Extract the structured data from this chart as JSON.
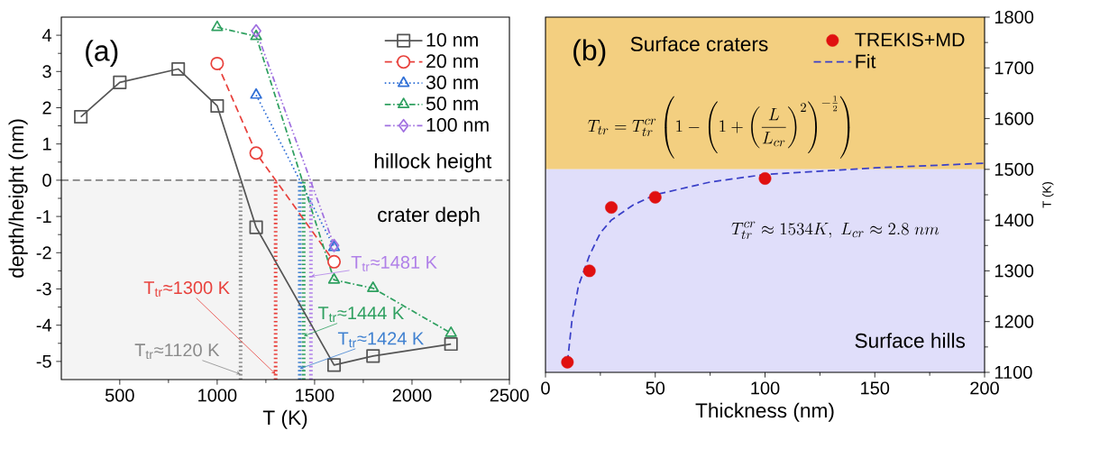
{
  "chart_data": [
    {
      "type": "line",
      "xlabel": "T (K)",
      "ylabel": "depth/height (nm)",
      "xlim": [
        200,
        2500
      ],
      "xticks": [
        500,
        1000,
        1500,
        2000,
        2500
      ],
      "ylim": [
        -5.5,
        4.5
      ],
      "yticks": [
        -5,
        -4,
        -3,
        -2,
        -1,
        0,
        1,
        2,
        3,
        4
      ],
      "legend": "top right",
      "series": [
        {
          "name": "10 nm",
          "color": "#555555",
          "marker": "square",
          "line_style": "solid",
          "x": [
            300,
            500,
            800,
            1000,
            1200,
            1600,
            1800,
            2200
          ],
          "values": [
            1.75,
            2.7,
            3.07,
            2.05,
            -1.3,
            -5.1,
            -4.85,
            -4.52
          ]
        },
        {
          "name": "20 nm",
          "color": "#e8413c",
          "marker": "circle",
          "line_style": "dashed",
          "x": [
            1000,
            1200,
            1600
          ],
          "values": [
            3.22,
            0.75,
            -2.25
          ]
        },
        {
          "name": "30 nm",
          "color": "#2f6fd6",
          "marker": "triangle",
          "line_style": "dotted",
          "x": [
            1200,
            1600
          ],
          "values": [
            2.35,
            -1.85
          ]
        },
        {
          "name": "50 nm",
          "color": "#2fa060",
          "marker": "triangle-down",
          "line_style": "dashdot",
          "x": [
            1000,
            1200,
            1600,
            1800,
            2200
          ],
          "values": [
            4.22,
            3.97,
            -2.75,
            -2.98,
            -4.22
          ]
        },
        {
          "name": "100 nm",
          "color": "#a070e0",
          "marker": "diamond",
          "line_style": "dashdotdot",
          "x": [
            1200,
            1600
          ],
          "values": [
            4.12,
            -1.8
          ]
        }
      ],
      "ref_lines": [
        {
          "axis": "y",
          "value": 0,
          "label": "hillock height",
          "color": "#555555",
          "line_style": "dashed"
        },
        {
          "axis": "x",
          "value": 1120,
          "color": "#8a8a8a",
          "line_style": "dotted"
        },
        {
          "axis": "x",
          "value": 1300,
          "color": "#e8413c",
          "line_style": "dotted"
        },
        {
          "axis": "x",
          "value": 1424,
          "color": "#3f80d0",
          "line_style": "dotted"
        },
        {
          "axis": "x",
          "value": 1444,
          "color": "#2fa060",
          "line_style": "dotted"
        },
        {
          "axis": "x",
          "value": 1481,
          "color": "#b080e8",
          "line_style": "dotted"
        }
      ],
      "bands": [
        {
          "axis": "y",
          "from": -5.5,
          "to": 0,
          "label": "crater deph",
          "color": "#f4f4f4"
        }
      ],
      "annotations": [
        "(a)",
        {
          "text": "T$_{tr}$≈1120 K",
          "x": 1120,
          "y": -5.35
        },
        {
          "text": "T$_{tr}$≈1300 K",
          "x": 1300,
          "y": -5.35
        },
        {
          "text": "T$_{tr}$≈1424 K",
          "x": 1424,
          "y": -5.2
        },
        {
          "text": "T$_{tr}$≈1444 K",
          "x": 1444,
          "y": -4.3
        },
        {
          "text": "T$_{tr}$≈1481 K",
          "x": 1481,
          "y": -2.65
        }
      ]
    },
    {
      "type": "scatter",
      "xlabel": "Thickness (nm)",
      "ylabel": "T (K)",
      "xlim": [
        0,
        200
      ],
      "xticks": [
        0,
        50,
        100,
        150,
        200
      ],
      "ylim": [
        1100,
        1800
      ],
      "yticks": [
        1100,
        1200,
        1300,
        1400,
        1500,
        1600,
        1700,
        1800
      ],
      "legend": "top right",
      "series": [
        {
          "name": "TREKIS+MD",
          "color": "#e01010",
          "marker": "circle",
          "x": [
            10,
            20,
            30,
            50,
            100
          ],
          "values": [
            1120,
            1300,
            1425,
            1445,
            1482
          ]
        },
        {
          "name": "Fit",
          "type": "line",
          "color": "#3a40c8",
          "marker": "none",
          "line_style": "dashed",
          "x": [
            10,
            12,
            15,
            20,
            25,
            30,
            40,
            50,
            75,
            100,
            150,
            200
          ],
          "values": [
            1120,
            1200,
            1270,
            1330,
            1375,
            1400,
            1430,
            1450,
            1475,
            1490,
            1503,
            1512
          ]
        }
      ],
      "bands": [
        {
          "axis": "y",
          "from": 1500,
          "to": 1800,
          "label": "Surface craters",
          "color": "#f3cf80"
        },
        {
          "axis": "y",
          "from": 1100,
          "to": 1500,
          "label": "Surface hills",
          "color": "#e0defa"
        }
      ],
      "annotations": [
        "(b)",
        "T_{tr} = T_{tr}^{cr}\\left(1-\\left(1+\\left(\\frac{L}{L_{cr}}\\right)^{2}\\right)^{-\\frac{1}{2}}\\right)",
        "T_{tr}^{cr} \\approx 1534K,\\ L_{cr} \\approx 2.8\\ nm"
      ]
    }
  ]
}
